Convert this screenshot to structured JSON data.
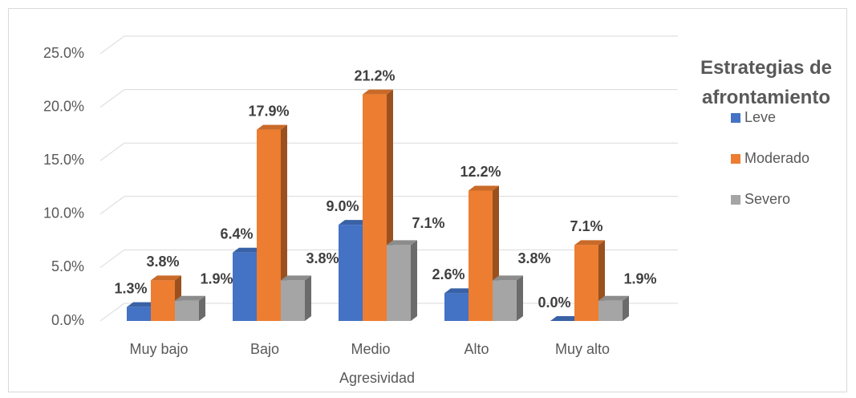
{
  "chart_data": {
    "type": "bar3d",
    "x_label": "Agresividad",
    "legend_title": "Estrategias de afrontamiento",
    "categories": [
      "Muy bajo",
      "Bajo",
      "Medio",
      "Alto",
      "Muy alto"
    ],
    "series": [
      {
        "name": "Leve",
        "color": "#4472c4",
        "values": [
          1.3,
          6.4,
          9.0,
          2.6,
          0.0
        ],
        "value_labels": [
          "1.3%",
          "6.4%",
          "9.0%",
          "2.6%",
          "0.0%"
        ]
      },
      {
        "name": "Moderado",
        "color": "#ed7d31",
        "values": [
          3.8,
          17.9,
          21.2,
          12.2,
          7.1
        ],
        "value_labels": [
          "3.8%",
          "17.9%",
          "21.2%",
          "12.2%",
          "7.1%"
        ]
      },
      {
        "name": "Severo",
        "color": "#a5a5a5",
        "values": [
          1.9,
          3.8,
          7.1,
          3.8,
          1.9
        ],
        "value_labels": [
          "1.9%",
          "3.8%",
          "7.1%",
          "3.8%",
          "1.9%"
        ]
      }
    ],
    "ylim": [
      0,
      25
    ],
    "yticks": [
      {
        "value": 0,
        "label": "0.0%"
      },
      {
        "value": 5,
        "label": "5.0%"
      },
      {
        "value": 10,
        "label": "10.0%"
      },
      {
        "value": 15,
        "label": "15.0%"
      },
      {
        "value": 20,
        "label": "20.0%"
      },
      {
        "value": 25,
        "label": "25.0%"
      }
    ],
    "grid": true
  }
}
